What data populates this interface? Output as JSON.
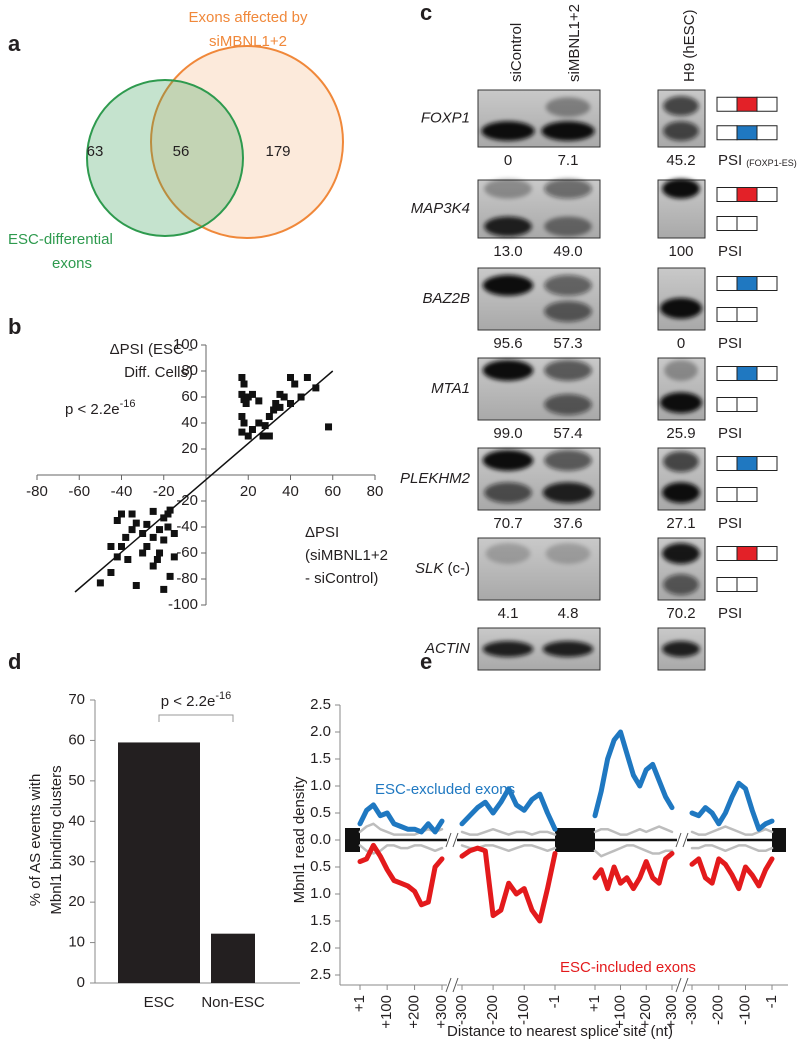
{
  "panel_labels": [
    "a",
    "b",
    "c",
    "d",
    "e"
  ],
  "venn": {
    "set_a": {
      "label_lines": [
        "ESC-differential",
        "exons"
      ],
      "color": "#2e9a4e"
    },
    "set_b": {
      "label_lines": [
        "Exons affected by",
        "siMBNL1+2"
      ],
      "color": "#f0883a"
    },
    "only_a": 63,
    "both": 56,
    "only_b": 179
  },
  "gel": {
    "columns": [
      "siControl",
      "siMBNL1+2",
      "H9 (hESC)"
    ],
    "psi_label": "PSI",
    "rows": [
      {
        "gene": "FOXP1",
        "psi": [
          "0",
          "7.1",
          "45.2"
        ],
        "psi_note": "(FOXP1-ES)"
      },
      {
        "gene": "MAP3K4",
        "psi": [
          "13.0",
          "49.0",
          "100"
        ]
      },
      {
        "gene": "BAZ2B",
        "psi": [
          "95.6",
          "57.3",
          "0"
        ]
      },
      {
        "gene": "MTA1",
        "psi": [
          "99.0",
          "57.4",
          "25.9"
        ]
      },
      {
        "gene": "PLEKHM2",
        "psi": [
          "70.7",
          "37.6",
          "27.1"
        ]
      },
      {
        "gene": "SLK",
        "suffix": "(c-)",
        "psi": [
          "4.1",
          "4.8",
          "70.2"
        ]
      },
      {
        "gene": "ACTIN"
      }
    ]
  },
  "chart_data": [
    {
      "type": "scatter",
      "y_label_lines": [
        "ΔPSI (ESC -",
        "Diff. Cells)"
      ],
      "x_label_lines": [
        "ΔPSI",
        "(siMBNL1+2",
        "- siControl)"
      ],
      "annotation": {
        "text": "p < 2.2e",
        "exponent": "-16"
      },
      "color": "#111111",
      "x": [
        17,
        18,
        17,
        18,
        19,
        20,
        17,
        18,
        17,
        20,
        22,
        25,
        27,
        28,
        30,
        30,
        32,
        33,
        35,
        35,
        37,
        40,
        40,
        42,
        45,
        48,
        52,
        58,
        22,
        25,
        -50,
        -45,
        -42,
        -40,
        -38,
        -35,
        -33,
        -30,
        -28,
        -25,
        -22,
        -20,
        -18,
        -17,
        -18,
        -20,
        -22,
        -23,
        -25,
        -28,
        -30,
        -33,
        -40,
        -42,
        -35,
        -20,
        -17,
        -15,
        -15,
        -25,
        -45,
        -37
      ],
      "y": [
        75,
        70,
        62,
        58,
        55,
        60,
        45,
        40,
        33,
        30,
        35,
        40,
        30,
        38,
        30,
        45,
        50,
        55,
        52,
        62,
        60,
        55,
        75,
        70,
        60,
        75,
        67,
        37,
        62,
        57,
        -83,
        -75,
        -63,
        -55,
        -48,
        -42,
        -37,
        -45,
        -55,
        -48,
        -42,
        -33,
        -30,
        -27,
        -40,
        -50,
        -60,
        -65,
        -70,
        -38,
        -60,
        -85,
        -30,
        -35,
        -30,
        -88,
        -78,
        -63,
        -45,
        -28,
        -55,
        -65
      ],
      "fit_line": {
        "x": [
          -62,
          60
        ],
        "y": [
          -90,
          80
        ]
      },
      "xlim": [
        -80,
        80
      ],
      "ylim": [
        -100,
        100
      ],
      "xticks": [
        -80,
        -60,
        -40,
        -20,
        20,
        40,
        60,
        80
      ],
      "yticks": [
        -100,
        -80,
        -60,
        -40,
        -20,
        20,
        40,
        60,
        80,
        100
      ]
    },
    {
      "type": "bar",
      "categories": [
        "ESC",
        "Non-ESC"
      ],
      "values": [
        59.5,
        12.2
      ],
      "color": "#231f20",
      "y_label_lines": [
        "% of AS events with",
        "Mbnl1 binding clusters"
      ],
      "annotation": {
        "text": "p < 2.2e",
        "exponent": "-16"
      },
      "ylim": [
        0,
        70
      ],
      "yticks": [
        0,
        10,
        20,
        30,
        40,
        50,
        60,
        70
      ]
    },
    {
      "type": "line",
      "y_label": "Mbnl1 read density",
      "x_label": "Distance to nearest splice site (nt)",
      "segments": [
        {
          "xlim": [
            1,
            300
          ],
          "x": [
            1,
            25,
            50,
            75,
            100,
            125,
            150,
            175,
            200,
            225,
            250,
            275,
            300
          ],
          "xticks": [
            {
              "value": 1,
              "label": "+1"
            },
            {
              "value": 100,
              "label": "+100"
            },
            {
              "value": 200,
              "label": "+200"
            },
            {
              "value": 300,
              "label": "+300"
            }
          ]
        },
        {
          "xlim": [
            -300,
            -1
          ],
          "x": [
            -300,
            -275,
            -250,
            -225,
            -200,
            -175,
            -150,
            -125,
            -100,
            -75,
            -50,
            -25,
            -1
          ],
          "xticks": [
            -300,
            -200,
            -100,
            -1
          ]
        },
        {
          "xlim": [
            1,
            300
          ],
          "x": [
            1,
            25,
            50,
            75,
            100,
            125,
            150,
            175,
            200,
            225,
            250,
            275,
            300
          ],
          "xticks": [
            {
              "value": 1,
              "label": "+1"
            },
            {
              "value": 100,
              "label": "+100"
            },
            {
              "value": 200,
              "label": "+200"
            },
            {
              "value": 300,
              "label": "+300"
            }
          ]
        },
        {
          "xlim": [
            -300,
            -1
          ],
          "x": [
            -300,
            -275,
            -250,
            -225,
            -200,
            -175,
            -150,
            -125,
            -100,
            -75,
            -50,
            -25,
            -1
          ],
          "xticks": [
            -300,
            -200,
            -100,
            -1
          ]
        }
      ],
      "ylim": [
        0,
        2.5
      ],
      "yticks": [
        {
          "value": 0,
          "label": "0.0"
        },
        0.5,
        {
          "value": 1,
          "label": "1.0"
        },
        1.5,
        {
          "value": 2,
          "label": "2.0"
        },
        2.5
      ],
      "ylim_lower": [
        0,
        2.5
      ],
      "yticks_lower": [
        0.5,
        {
          "value": 1,
          "label": "1.0"
        },
        1.5,
        {
          "value": 2,
          "label": "2.0"
        },
        2.5
      ],
      "series": [
        {
          "color": "#bdbdbd",
          "half": "upper",
          "values": [
            [
              0.15,
              0.25,
              0.3,
              0.2,
              0.15,
              0.1,
              0.1,
              0.1,
              0.1,
              0.15,
              0.2,
              0.15,
              0.2
            ],
            [
              0.15,
              0.1,
              0.1,
              0.15,
              0.2,
              0.15,
              0.1,
              0.15,
              0.15,
              0.1,
              0.15,
              0.15,
              0.1
            ],
            [
              0.15,
              0.2,
              0.2,
              0.15,
              0.1,
              0.1,
              0.15,
              0.2,
              0.15,
              0.2,
              0.25,
              0.2,
              0.15
            ],
            [
              0.15,
              0.1,
              0.1,
              0.15,
              0.2,
              0.25,
              0.2,
              0.15,
              0.1,
              0.1,
              0.15,
              0.2,
              0.15
            ]
          ]
        },
        {
          "color": "#bdbdbd",
          "half": "lower",
          "values": [
            [
              0.1,
              0.2,
              0.25,
              0.2,
              0.1,
              0.1,
              0.15,
              0.15,
              0.1,
              0.1,
              0.15,
              0.2,
              0.15
            ],
            [
              0.1,
              0.15,
              0.15,
              0.1,
              0.1,
              0.15,
              0.2,
              0.15,
              0.1,
              0.1,
              0.15,
              0.2,
              0.15
            ],
            [
              0.2,
              0.3,
              0.25,
              0.2,
              0.15,
              0.1,
              0.1,
              0.15,
              0.2,
              0.25,
              0.25,
              0.2,
              0.2
            ],
            [
              0.15,
              0.15,
              0.1,
              0.1,
              0.15,
              0.2,
              0.15,
              0.1,
              0.1,
              0.15,
              0.2,
              0.2,
              0.15
            ]
          ]
        },
        {
          "name": "ESC-excluded exons",
          "color": "#1f78c1",
          "half": "upper",
          "values": [
            [
              0.3,
              0.55,
              0.65,
              0.45,
              0.5,
              0.3,
              0.25,
              0.2,
              0.2,
              0.15,
              0.3,
              0.15,
              0.35
            ],
            [
              0.3,
              0.45,
              0.6,
              0.7,
              0.5,
              0.7,
              0.95,
              0.65,
              0.55,
              0.75,
              0.85,
              0.5,
              0.2
            ],
            [
              0.45,
              0.9,
              1.5,
              1.85,
              2.0,
              1.6,
              1.2,
              1.0,
              1.3,
              1.4,
              1.1,
              0.8,
              0.6
            ],
            [
              0.5,
              0.45,
              0.6,
              0.5,
              0.3,
              0.5,
              0.8,
              1.05,
              0.95,
              0.55,
              0.2,
              0.3,
              0.35
            ]
          ]
        },
        {
          "name": "ESC-included exons",
          "color": "#e31a1c",
          "half": "lower",
          "values": [
            [
              0.4,
              0.35,
              0.1,
              0.3,
              0.55,
              0.75,
              0.8,
              0.85,
              0.95,
              1.2,
              1.15,
              0.5,
              0.35
            ],
            [
              0.3,
              0.2,
              0.15,
              0.2,
              1.4,
              1.3,
              0.8,
              1.0,
              0.9,
              1.3,
              1.5,
              0.9,
              0.25
            ],
            [
              0.7,
              0.55,
              0.9,
              0.5,
              0.8,
              0.7,
              0.9,
              0.7,
              0.4,
              0.7,
              0.8,
              0.35,
              0.25
            ],
            [
              0.45,
              0.35,
              0.7,
              0.8,
              0.35,
              0.45,
              0.65,
              0.9,
              0.5,
              0.65,
              0.85,
              0.55,
              0.35
            ]
          ]
        }
      ]
    }
  ]
}
